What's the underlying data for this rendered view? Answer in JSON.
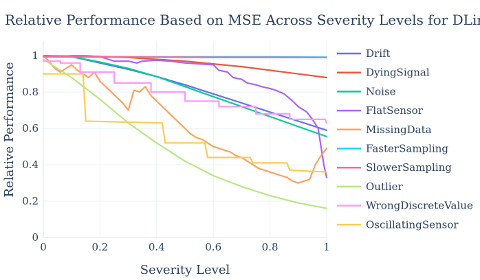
{
  "chart_data": {
    "type": "line",
    "title": "Relative Performance Based on MSE Across Severity Levels for DLinear",
    "xlabel": "Severity Level",
    "ylabel": "Relative Performance",
    "xlim": [
      0,
      1
    ],
    "ylim": [
      0,
      1.08
    ],
    "xticks": [
      0,
      0.2,
      0.4,
      0.6,
      0.8,
      1
    ],
    "xtick_labels": [
      "0",
      "0.2",
      "0.4",
      "0.6",
      "0.8",
      "1"
    ],
    "yticks": [
      0,
      0.2,
      0.4,
      0.6,
      0.8,
      1
    ],
    "ytick_labels": [
      "0",
      "0.2",
      "0.4",
      "0.6",
      "0.8",
      "1"
    ],
    "grid": true,
    "legend_position": "right",
    "series": [
      {
        "name": "Drift",
        "color": "#636efa",
        "x": [
          0,
          0.1,
          0.2,
          0.3,
          0.4,
          0.5,
          0.6,
          0.7,
          0.8,
          0.9,
          1.0
        ],
        "y": [
          1.0,
          0.995,
          0.96,
          0.925,
          0.885,
          0.84,
          0.79,
          0.74,
          0.69,
          0.64,
          0.59
        ]
      },
      {
        "name": "DyingSignal",
        "color": "#EF553B",
        "x": [
          0,
          0.1,
          0.2,
          0.3,
          0.4,
          0.5,
          0.6,
          0.7,
          0.8,
          0.9,
          1.0
        ],
        "y": [
          1.0,
          0.998,
          0.995,
          0.99,
          0.98,
          0.97,
          0.955,
          0.94,
          0.92,
          0.9,
          0.88
        ]
      },
      {
        "name": "Noise",
        "color": "#00cc96",
        "x": [
          0,
          0.1,
          0.2,
          0.3,
          0.4,
          0.5,
          0.6,
          0.7,
          0.8,
          0.9,
          1.0
        ],
        "y": [
          1.0,
          0.995,
          0.965,
          0.93,
          0.885,
          0.83,
          0.775,
          0.72,
          0.665,
          0.61,
          0.555
        ]
      },
      {
        "name": "FlatSensor",
        "color": "#ab63fa",
        "x": [
          0,
          0.05,
          0.1,
          0.15,
          0.2,
          0.25,
          0.3,
          0.33,
          0.35,
          0.4,
          0.45,
          0.5,
          0.55,
          0.6,
          0.62,
          0.65,
          0.67,
          0.7,
          0.72,
          0.75,
          0.77,
          0.8,
          0.82,
          0.85,
          0.88,
          0.9,
          0.93,
          0.95,
          0.97,
          0.98,
          0.99,
          1.0
        ],
        "y": [
          1.0,
          0.995,
          1.0,
          1.0,
          0.995,
          0.97,
          0.97,
          0.96,
          0.97,
          0.975,
          0.97,
          0.96,
          0.955,
          0.95,
          0.92,
          0.91,
          0.88,
          0.87,
          0.85,
          0.84,
          0.83,
          0.82,
          0.81,
          0.79,
          0.75,
          0.72,
          0.69,
          0.65,
          0.6,
          0.5,
          0.4,
          0.33
        ]
      },
      {
        "name": "MissingData",
        "color": "#FFA15A",
        "x": [
          0,
          0.02,
          0.04,
          0.06,
          0.08,
          0.1,
          0.12,
          0.14,
          0.16,
          0.18,
          0.2,
          0.22,
          0.24,
          0.26,
          0.28,
          0.3,
          0.32,
          0.34,
          0.36,
          0.38,
          0.4,
          0.42,
          0.44,
          0.46,
          0.48,
          0.5,
          0.52,
          0.54,
          0.56,
          0.58,
          0.6,
          0.62,
          0.64,
          0.66,
          0.68,
          0.7,
          0.72,
          0.74,
          0.76,
          0.78,
          0.8,
          0.82,
          0.84,
          0.86,
          0.88,
          0.9,
          0.92,
          0.94,
          0.96,
          0.98,
          1.0
        ],
        "y": [
          1.0,
          0.97,
          0.93,
          0.91,
          0.93,
          0.95,
          0.92,
          0.9,
          0.88,
          0.91,
          0.86,
          0.83,
          0.8,
          0.77,
          0.74,
          0.7,
          0.81,
          0.8,
          0.83,
          0.78,
          0.75,
          0.72,
          0.69,
          0.66,
          0.63,
          0.6,
          0.57,
          0.55,
          0.54,
          0.52,
          0.5,
          0.49,
          0.48,
          0.47,
          0.45,
          0.44,
          0.42,
          0.4,
          0.38,
          0.37,
          0.36,
          0.35,
          0.34,
          0.33,
          0.31,
          0.3,
          0.31,
          0.32,
          0.4,
          0.45,
          0.49
        ]
      },
      {
        "name": "FasterSampling",
        "color": "#19d3f3",
        "x": [
          0,
          0.2,
          0.4,
          0.6,
          0.8,
          1.0
        ],
        "y": [
          0.995,
          0.994,
          0.993,
          0.993,
          0.993,
          0.992
        ]
      },
      {
        "name": "SlowerSampling",
        "color": "#FF6692",
        "x": [
          0,
          0.2,
          0.4,
          0.6,
          0.8,
          1.0
        ],
        "y": [
          0.994,
          0.993,
          0.992,
          0.991,
          0.991,
          0.99
        ]
      },
      {
        "name": "Outlier",
        "color": "#B6E880",
        "x": [
          0,
          0.1,
          0.2,
          0.3,
          0.4,
          0.5,
          0.6,
          0.7,
          0.8,
          0.9,
          1.0
        ],
        "y": [
          0.98,
          0.88,
          0.76,
          0.63,
          0.52,
          0.42,
          0.34,
          0.28,
          0.23,
          0.19,
          0.16
        ]
      },
      {
        "name": "WrongDiscreteValue",
        "color": "#FF97FF",
        "x": [
          0,
          0.06,
          0.06,
          0.13,
          0.13,
          0.25,
          0.25,
          0.38,
          0.38,
          0.5,
          0.5,
          0.62,
          0.62,
          0.75,
          0.75,
          0.87,
          0.87,
          0.995,
          1.0
        ],
        "y": [
          0.97,
          0.97,
          0.96,
          0.96,
          0.91,
          0.91,
          0.85,
          0.85,
          0.8,
          0.8,
          0.75,
          0.75,
          0.72,
          0.72,
          0.68,
          0.68,
          0.65,
          0.65,
          0.63
        ]
      },
      {
        "name": "OscillatingSensor",
        "color": "#FECB52",
        "x": [
          0,
          0.14,
          0.15,
          0.42,
          0.43,
          0.57,
          0.58,
          0.73,
          0.74,
          0.86,
          0.87,
          1.0
        ],
        "y": [
          0.9,
          0.9,
          0.64,
          0.63,
          0.52,
          0.52,
          0.44,
          0.44,
          0.41,
          0.41,
          0.37,
          0.36
        ]
      }
    ]
  }
}
